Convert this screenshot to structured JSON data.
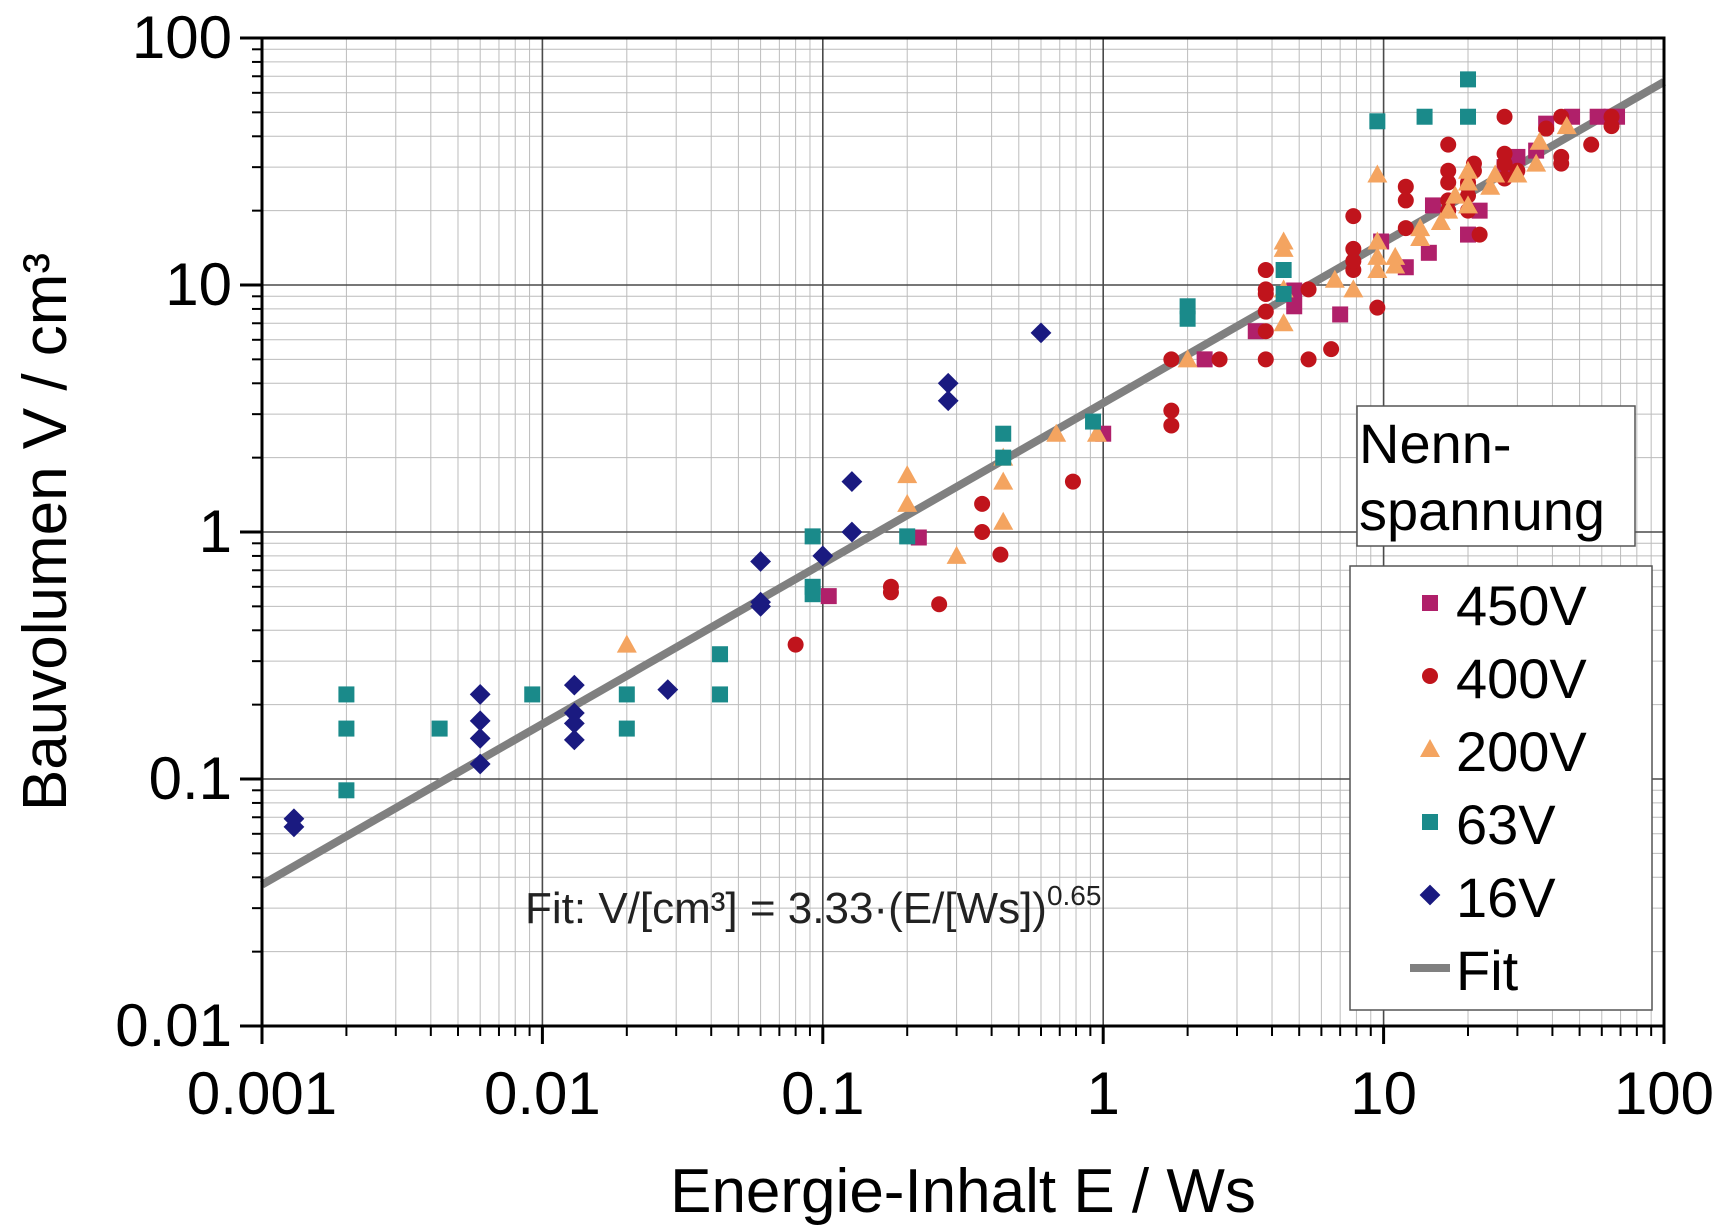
{
  "chart_data": {
    "type": "scatter",
    "xscale": "log",
    "yscale": "log",
    "xlim": [
      0.001,
      100
    ],
    "ylim": [
      0.01,
      100
    ],
    "xlabel": "Energie-Inhalt  E / Ws",
    "ylabel": "Bauvolumen  V / cm³",
    "x_ticks": [
      "0.001",
      "0.01",
      "0.1",
      "1",
      "10",
      "100"
    ],
    "y_ticks": [
      "0.01",
      "0.1",
      "1",
      "10",
      "100"
    ],
    "grid": true,
    "legend_position": "right",
    "legend_title_lines": [
      "Nenn-",
      "spannung"
    ],
    "fit_annotation": {
      "prefix": "Fit:  V/[cm³] = 3.33·(E/[Ws])",
      "exponent": "0.65"
    },
    "fit": {
      "name": "Fit",
      "coefficient": 3.33,
      "exponent": 0.65,
      "color": "#808080"
    },
    "series": [
      {
        "name": "450V",
        "marker": "square",
        "color": "#b0206a",
        "points": [
          [
            0.105,
            0.55
          ],
          [
            0.22,
            0.95
          ],
          [
            1.0,
            2.5
          ],
          [
            2.3,
            5.0
          ],
          [
            3.5,
            6.5
          ],
          [
            4.8,
            8.2
          ],
          [
            7.0,
            7.6
          ],
          [
            4.8,
            9.5
          ],
          [
            9.8,
            15
          ],
          [
            12.0,
            11.8
          ],
          [
            14.5,
            13.5
          ],
          [
            15,
            21
          ],
          [
            20,
            16
          ],
          [
            22,
            20
          ],
          [
            27,
            30
          ],
          [
            30,
            33
          ],
          [
            35,
            35
          ],
          [
            38,
            45
          ],
          [
            47,
            48
          ],
          [
            58,
            48
          ],
          [
            65,
            48
          ],
          [
            68,
            48
          ]
        ]
      },
      {
        "name": "400V",
        "marker": "circle",
        "color": "#c0141c",
        "points": [
          [
            0.08,
            0.35
          ],
          [
            0.175,
            0.57
          ],
          [
            0.175,
            0.6
          ],
          [
            0.26,
            0.51
          ],
          [
            0.37,
            1.0
          ],
          [
            0.37,
            1.3
          ],
          [
            0.43,
            0.81
          ],
          [
            0.78,
            1.6
          ],
          [
            1.75,
            2.7
          ],
          [
            1.75,
            3.1
          ],
          [
            1.75,
            5.0
          ],
          [
            2.6,
            5.0
          ],
          [
            3.8,
            5.0
          ],
          [
            3.8,
            6.5
          ],
          [
            3.8,
            7.8
          ],
          [
            3.8,
            9.2
          ],
          [
            3.8,
            9.6
          ],
          [
            3.8,
            11.5
          ],
          [
            5.4,
            5.0
          ],
          [
            5.4,
            9.6
          ],
          [
            6.5,
            5.5
          ],
          [
            7.8,
            11.5
          ],
          [
            7.8,
            12.5
          ],
          [
            7.8,
            14
          ],
          [
            7.8,
            19
          ],
          [
            9.5,
            8.1
          ],
          [
            12,
            17
          ],
          [
            12,
            22
          ],
          [
            12,
            25
          ],
          [
            17,
            20
          ],
          [
            17,
            22
          ],
          [
            17,
            26
          ],
          [
            17,
            29
          ],
          [
            17,
            37
          ],
          [
            20,
            20
          ],
          [
            20,
            23
          ],
          [
            20,
            25
          ],
          [
            20,
            26
          ],
          [
            21,
            29
          ],
          [
            21,
            31
          ],
          [
            22,
            16
          ],
          [
            27,
            27
          ],
          [
            27,
            31
          ],
          [
            27,
            34
          ],
          [
            27,
            48
          ],
          [
            30,
            29
          ],
          [
            38,
            43
          ],
          [
            43,
            31
          ],
          [
            43,
            33
          ],
          [
            43,
            48
          ],
          [
            55,
            37
          ],
          [
            65,
            44
          ],
          [
            65,
            48
          ]
        ]
      },
      {
        "name": "200V",
        "marker": "triangle",
        "color": "#f4a460",
        "points": [
          [
            0.02,
            0.35
          ],
          [
            0.2,
            1.3
          ],
          [
            0.2,
            1.7
          ],
          [
            0.3,
            0.8
          ],
          [
            0.44,
            1.1
          ],
          [
            0.44,
            1.6
          ],
          [
            0.44,
            2.0
          ],
          [
            0.68,
            2.5
          ],
          [
            0.95,
            2.5
          ],
          [
            2.0,
            5.0
          ],
          [
            4.4,
            7.0
          ],
          [
            4.4,
            9.6
          ],
          [
            4.4,
            14
          ],
          [
            4.4,
            15
          ],
          [
            6.7,
            10.5
          ],
          [
            7.8,
            9.6
          ],
          [
            9.5,
            11.5
          ],
          [
            9.5,
            13
          ],
          [
            9.5,
            15
          ],
          [
            9.5,
            28
          ],
          [
            11,
            12
          ],
          [
            11,
            13
          ],
          [
            13.5,
            15.5
          ],
          [
            13.5,
            17
          ],
          [
            16,
            18
          ],
          [
            17,
            20
          ],
          [
            18,
            23
          ],
          [
            20,
            21
          ],
          [
            20,
            26
          ],
          [
            20,
            29
          ],
          [
            24,
            25
          ],
          [
            25,
            28
          ],
          [
            30,
            28
          ],
          [
            35,
            31
          ],
          [
            36,
            38
          ],
          [
            45,
            44
          ]
        ]
      },
      {
        "name": "63V",
        "marker": "square",
        "color": "#1a8a8a",
        "points": [
          [
            0.002,
            0.09
          ],
          [
            0.002,
            0.16
          ],
          [
            0.002,
            0.22
          ],
          [
            0.0043,
            0.16
          ],
          [
            0.0092,
            0.22
          ],
          [
            0.02,
            0.16
          ],
          [
            0.02,
            0.22
          ],
          [
            0.043,
            0.22
          ],
          [
            0.043,
            0.32
          ],
          [
            0.092,
            0.56
          ],
          [
            0.092,
            0.6
          ],
          [
            0.092,
            0.96
          ],
          [
            0.2,
            0.96
          ],
          [
            0.44,
            2.0
          ],
          [
            0.44,
            2.5
          ],
          [
            0.92,
            2.8
          ],
          [
            2.0,
            7.3
          ],
          [
            2.0,
            8.2
          ],
          [
            4.4,
            9.2
          ],
          [
            4.4,
            11.5
          ],
          [
            9.5,
            46
          ],
          [
            14,
            48
          ],
          [
            20,
            48
          ],
          [
            20,
            68
          ]
        ]
      },
      {
        "name": "16V",
        "marker": "diamond",
        "color": "#1a1a80",
        "points": [
          [
            0.0013,
            0.064
          ],
          [
            0.0013,
            0.069
          ],
          [
            0.006,
            0.115
          ],
          [
            0.006,
            0.146
          ],
          [
            0.006,
            0.172
          ],
          [
            0.006,
            0.22
          ],
          [
            0.013,
            0.144
          ],
          [
            0.013,
            0.168
          ],
          [
            0.013,
            0.185
          ],
          [
            0.013,
            0.24
          ],
          [
            0.028,
            0.23
          ],
          [
            0.06,
            0.5
          ],
          [
            0.06,
            0.52
          ],
          [
            0.06,
            0.76
          ],
          [
            0.1,
            0.8
          ],
          [
            0.127,
            1.0
          ],
          [
            0.127,
            1.6
          ],
          [
            0.28,
            3.4
          ],
          [
            0.28,
            4.0
          ],
          [
            0.6,
            6.4
          ]
        ]
      }
    ]
  }
}
